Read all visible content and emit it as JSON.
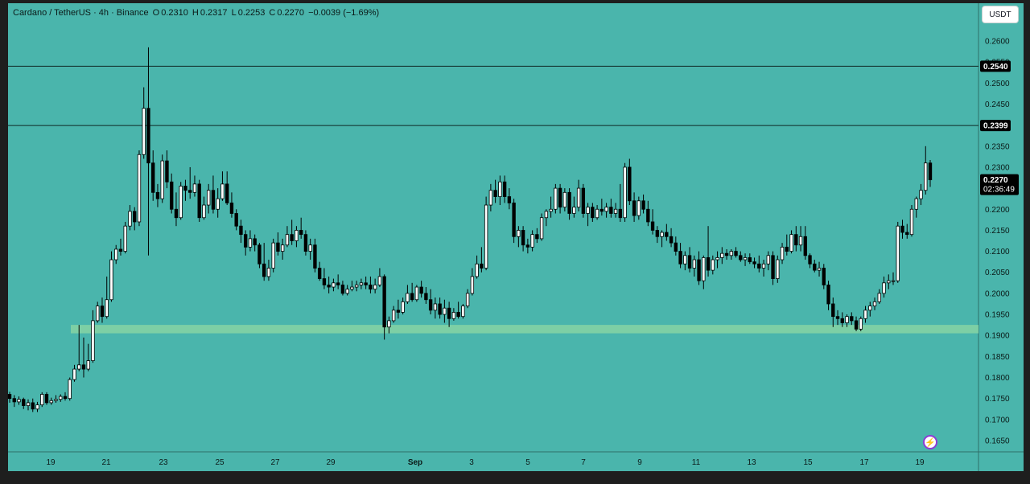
{
  "header": {
    "symbol": "Cardano / TetherUS · 4h · Binance",
    "open_label": "O",
    "open": "0.2310",
    "high_label": "H",
    "high": "0.2317",
    "low_label": "L",
    "low": "0.2253",
    "close_label": "C",
    "close": "0.2270",
    "change": "−0.0039 (−1.69%)"
  },
  "currency_button": "USDT",
  "colors": {
    "background": "#4ab5ac",
    "frame": "#1e1e1e",
    "up_candle": "#ffffff",
    "down_candle": "#000000",
    "wick": "#000000",
    "support_zone": "#86d3a3",
    "horizontal_line": "#0f2a26",
    "badge": "#000000",
    "bolt_accent": "#8c3bd6"
  },
  "icons": {
    "bolt": "lightning-bolt-icon"
  },
  "chart_data": {
    "type": "candlestick",
    "title": "Cardano / TetherUS · 4h · Binance",
    "ylim": [
      0.1625,
      0.2625
    ],
    "y_ticks": [
      "0.2600",
      "0.2550",
      "0.2500",
      "0.2450",
      "0.2400",
      "0.2350",
      "0.2300",
      "0.2250",
      "0.2200",
      "0.2150",
      "0.2100",
      "0.2050",
      "0.2000",
      "0.1950",
      "0.1900",
      "0.1850",
      "0.1800",
      "0.1750",
      "0.1700",
      "0.1650"
    ],
    "x_ticks": [
      "19",
      "21",
      "23",
      "25",
      "27",
      "29",
      "Sep",
      "3",
      "5",
      "7",
      "9",
      "11",
      "13",
      "15",
      "17",
      "19"
    ],
    "horizontal_lines": [
      0.254,
      0.2399
    ],
    "horizontal_line_labels": [
      "0.2540",
      "0.2399"
    ],
    "support_zone": [
      0.1905,
      0.1925
    ],
    "last_price": "0.2270",
    "countdown": "02:36:49",
    "candles": [
      [
        0.176,
        0.1766,
        0.174,
        0.175
      ],
      [
        0.175,
        0.1758,
        0.173,
        0.1742
      ],
      [
        0.1742,
        0.1755,
        0.1735,
        0.1748
      ],
      [
        0.1748,
        0.1752,
        0.1725,
        0.1733
      ],
      [
        0.1733,
        0.1748,
        0.1722,
        0.174
      ],
      [
        0.174,
        0.175,
        0.1718,
        0.1725
      ],
      [
        0.1725,
        0.1742,
        0.1718,
        0.1735
      ],
      [
        0.1735,
        0.1765,
        0.173,
        0.176
      ],
      [
        0.176,
        0.1765,
        0.1735,
        0.174
      ],
      [
        0.174,
        0.1752,
        0.1735,
        0.1745
      ],
      [
        0.1745,
        0.1758,
        0.174,
        0.1748
      ],
      [
        0.1748,
        0.176,
        0.1742,
        0.1755
      ],
      [
        0.1755,
        0.1765,
        0.1745,
        0.175
      ],
      [
        0.175,
        0.18,
        0.1745,
        0.1795
      ],
      [
        0.1795,
        0.183,
        0.179,
        0.182
      ],
      [
        0.182,
        0.1925,
        0.1815,
        0.183
      ],
      [
        0.183,
        0.1895,
        0.18,
        0.182
      ],
      [
        0.182,
        0.188,
        0.1815,
        0.184
      ],
      [
        0.184,
        0.196,
        0.1835,
        0.1935
      ],
      [
        0.1935,
        0.198,
        0.193,
        0.197
      ],
      [
        0.197,
        0.199,
        0.193,
        0.1945
      ],
      [
        0.1945,
        0.204,
        0.194,
        0.1985
      ],
      [
        0.1985,
        0.21,
        0.198,
        0.208
      ],
      [
        0.208,
        0.2115,
        0.207,
        0.2105
      ],
      [
        0.2105,
        0.213,
        0.209,
        0.21
      ],
      [
        0.21,
        0.217,
        0.2095,
        0.216
      ],
      [
        0.216,
        0.221,
        0.215,
        0.2195
      ],
      [
        0.2195,
        0.2205,
        0.215,
        0.217
      ],
      [
        0.217,
        0.234,
        0.216,
        0.233
      ],
      [
        0.233,
        0.249,
        0.232,
        0.244
      ],
      [
        0.244,
        0.2585,
        0.209,
        0.231
      ],
      [
        0.231,
        0.234,
        0.222,
        0.224
      ],
      [
        0.224,
        0.226,
        0.2205,
        0.2225
      ],
      [
        0.2225,
        0.233,
        0.2215,
        0.2315
      ],
      [
        0.2315,
        0.234,
        0.225,
        0.2265
      ],
      [
        0.2265,
        0.2285,
        0.219,
        0.22
      ],
      [
        0.22,
        0.224,
        0.216,
        0.218
      ],
      [
        0.218,
        0.2265,
        0.2175,
        0.2255
      ],
      [
        0.2255,
        0.227,
        0.222,
        0.2245
      ],
      [
        0.2245,
        0.23,
        0.2225,
        0.224
      ],
      [
        0.224,
        0.228,
        0.223,
        0.226
      ],
      [
        0.226,
        0.227,
        0.217,
        0.218
      ],
      [
        0.218,
        0.223,
        0.2175,
        0.221
      ],
      [
        0.221,
        0.226,
        0.219,
        0.2245
      ],
      [
        0.2245,
        0.228,
        0.219,
        0.22
      ],
      [
        0.22,
        0.225,
        0.218,
        0.2225
      ],
      [
        0.2225,
        0.229,
        0.222,
        0.226
      ],
      [
        0.226,
        0.229,
        0.221,
        0.2215
      ],
      [
        0.2215,
        0.224,
        0.218,
        0.219
      ],
      [
        0.219,
        0.22,
        0.215,
        0.216
      ],
      [
        0.216,
        0.2175,
        0.212,
        0.214
      ],
      [
        0.214,
        0.215,
        0.209,
        0.211
      ],
      [
        0.211,
        0.215,
        0.21,
        0.213
      ],
      [
        0.213,
        0.214,
        0.21,
        0.2115
      ],
      [
        0.2115,
        0.212,
        0.206,
        0.207
      ],
      [
        0.207,
        0.212,
        0.203,
        0.204
      ],
      [
        0.204,
        0.208,
        0.203,
        0.206
      ],
      [
        0.206,
        0.213,
        0.205,
        0.212
      ],
      [
        0.212,
        0.2145,
        0.209,
        0.21
      ],
      [
        0.21,
        0.213,
        0.208,
        0.2115
      ],
      [
        0.2115,
        0.216,
        0.211,
        0.214
      ],
      [
        0.214,
        0.2175,
        0.2115,
        0.2125
      ],
      [
        0.2125,
        0.216,
        0.211,
        0.215
      ],
      [
        0.215,
        0.218,
        0.213,
        0.214
      ],
      [
        0.214,
        0.215,
        0.209,
        0.21
      ],
      [
        0.21,
        0.213,
        0.208,
        0.2115
      ],
      [
        0.2115,
        0.213,
        0.205,
        0.206
      ],
      [
        0.206,
        0.2075,
        0.203,
        0.2035
      ],
      [
        0.2035,
        0.206,
        0.201,
        0.202
      ],
      [
        0.202,
        0.204,
        0.2,
        0.2015
      ],
      [
        0.2015,
        0.2035,
        0.2005,
        0.2025
      ],
      [
        0.2025,
        0.2045,
        0.201,
        0.202
      ],
      [
        0.202,
        0.203,
        0.1995,
        0.2
      ],
      [
        0.2,
        0.202,
        0.1995,
        0.201
      ],
      [
        0.201,
        0.203,
        0.2005,
        0.2015
      ],
      [
        0.2015,
        0.203,
        0.2005,
        0.202
      ],
      [
        0.202,
        0.2035,
        0.201,
        0.2025
      ],
      [
        0.2025,
        0.204,
        0.201,
        0.202
      ],
      [
        0.202,
        0.204,
        0.2,
        0.201
      ],
      [
        0.201,
        0.2035,
        0.2,
        0.202
      ],
      [
        0.202,
        0.206,
        0.2015,
        0.204
      ],
      [
        0.204,
        0.2045,
        0.189,
        0.192
      ],
      [
        0.192,
        0.1945,
        0.1905,
        0.1935
      ],
      [
        0.1935,
        0.197,
        0.193,
        0.196
      ],
      [
        0.196,
        0.1985,
        0.194,
        0.1955
      ],
      [
        0.1955,
        0.199,
        0.195,
        0.198
      ],
      [
        0.198,
        0.202,
        0.1975,
        0.2
      ],
      [
        0.2,
        0.2025,
        0.198,
        0.1985
      ],
      [
        0.1985,
        0.202,
        0.198,
        0.2015
      ],
      [
        0.2015,
        0.203,
        0.199,
        0.2
      ],
      [
        0.2,
        0.2015,
        0.1975,
        0.1985
      ],
      [
        0.1985,
        0.201,
        0.195,
        0.196
      ],
      [
        0.196,
        0.199,
        0.194,
        0.1975
      ],
      [
        0.1975,
        0.199,
        0.194,
        0.195
      ],
      [
        0.195,
        0.1985,
        0.193,
        0.1965
      ],
      [
        0.1965,
        0.198,
        0.192,
        0.194
      ],
      [
        0.194,
        0.1965,
        0.1935,
        0.1955
      ],
      [
        0.1955,
        0.198,
        0.194,
        0.1945
      ],
      [
        0.1945,
        0.1975,
        0.194,
        0.197
      ],
      [
        0.197,
        0.201,
        0.1965,
        0.2
      ],
      [
        0.2,
        0.206,
        0.1995,
        0.204
      ],
      [
        0.204,
        0.209,
        0.2035,
        0.207
      ],
      [
        0.207,
        0.211,
        0.205,
        0.206
      ],
      [
        0.206,
        0.223,
        0.2055,
        0.221
      ],
      [
        0.221,
        0.226,
        0.2195,
        0.2245
      ],
      [
        0.2245,
        0.227,
        0.2215,
        0.223
      ],
      [
        0.223,
        0.228,
        0.221,
        0.2265
      ],
      [
        0.2265,
        0.228,
        0.2215,
        0.223
      ],
      [
        0.223,
        0.225,
        0.22,
        0.2215
      ],
      [
        0.2215,
        0.2225,
        0.212,
        0.2135
      ],
      [
        0.2135,
        0.216,
        0.211,
        0.215
      ],
      [
        0.215,
        0.216,
        0.21,
        0.2115
      ],
      [
        0.2115,
        0.213,
        0.2095,
        0.211
      ],
      [
        0.211,
        0.215,
        0.21,
        0.214
      ],
      [
        0.214,
        0.2155,
        0.212,
        0.213
      ],
      [
        0.213,
        0.219,
        0.2125,
        0.218
      ],
      [
        0.218,
        0.22,
        0.216,
        0.2195
      ],
      [
        0.2195,
        0.223,
        0.218,
        0.22
      ],
      [
        0.22,
        0.226,
        0.219,
        0.225
      ],
      [
        0.225,
        0.226,
        0.219,
        0.2205
      ],
      [
        0.2205,
        0.225,
        0.2195,
        0.224
      ],
      [
        0.224,
        0.225,
        0.2175,
        0.219
      ],
      [
        0.219,
        0.223,
        0.218,
        0.2205
      ],
      [
        0.2205,
        0.227,
        0.2195,
        0.225
      ],
      [
        0.225,
        0.226,
        0.218,
        0.219
      ],
      [
        0.219,
        0.2215,
        0.216,
        0.2205
      ],
      [
        0.2205,
        0.2215,
        0.217,
        0.218
      ],
      [
        0.218,
        0.221,
        0.2175,
        0.22
      ],
      [
        0.22,
        0.2225,
        0.2185,
        0.2195
      ],
      [
        0.2195,
        0.2215,
        0.218,
        0.2205
      ],
      [
        0.2205,
        0.2225,
        0.218,
        0.219
      ],
      [
        0.219,
        0.2215,
        0.218,
        0.22
      ],
      [
        0.22,
        0.226,
        0.217,
        0.218
      ],
      [
        0.218,
        0.231,
        0.217,
        0.23
      ],
      [
        0.23,
        0.232,
        0.221,
        0.222
      ],
      [
        0.222,
        0.224,
        0.217,
        0.2185
      ],
      [
        0.2185,
        0.223,
        0.2175,
        0.222
      ],
      [
        0.222,
        0.2235,
        0.219,
        0.22
      ],
      [
        0.22,
        0.222,
        0.216,
        0.217
      ],
      [
        0.217,
        0.22,
        0.214,
        0.215
      ],
      [
        0.215,
        0.216,
        0.212,
        0.2135
      ],
      [
        0.2135,
        0.215,
        0.211,
        0.2145
      ],
      [
        0.2145,
        0.2165,
        0.2125,
        0.2135
      ],
      [
        0.2135,
        0.2155,
        0.211,
        0.212
      ],
      [
        0.212,
        0.2135,
        0.209,
        0.21
      ],
      [
        0.21,
        0.212,
        0.206,
        0.207
      ],
      [
        0.207,
        0.21,
        0.2055,
        0.209
      ],
      [
        0.209,
        0.211,
        0.205,
        0.206
      ],
      [
        0.206,
        0.209,
        0.204,
        0.208
      ],
      [
        0.208,
        0.21,
        0.202,
        0.203
      ],
      [
        0.203,
        0.209,
        0.201,
        0.2085
      ],
      [
        0.2085,
        0.216,
        0.204,
        0.2055
      ],
      [
        0.2055,
        0.209,
        0.2045,
        0.208
      ],
      [
        0.208,
        0.21,
        0.206,
        0.2085
      ],
      [
        0.2085,
        0.211,
        0.207,
        0.2095
      ],
      [
        0.2095,
        0.2105,
        0.208,
        0.209
      ],
      [
        0.209,
        0.2105,
        0.208,
        0.21
      ],
      [
        0.21,
        0.211,
        0.2085,
        0.209
      ],
      [
        0.209,
        0.21,
        0.2075,
        0.208
      ],
      [
        0.208,
        0.2095,
        0.2065,
        0.2085
      ],
      [
        0.2085,
        0.2095,
        0.207,
        0.2075
      ],
      [
        0.2075,
        0.2085,
        0.206,
        0.207
      ],
      [
        0.207,
        0.209,
        0.205,
        0.206
      ],
      [
        0.206,
        0.208,
        0.204,
        0.207
      ],
      [
        0.207,
        0.21,
        0.2055,
        0.209
      ],
      [
        0.209,
        0.21,
        0.202,
        0.2035
      ],
      [
        0.2035,
        0.209,
        0.2025,
        0.208
      ],
      [
        0.208,
        0.212,
        0.207,
        0.211
      ],
      [
        0.211,
        0.214,
        0.209,
        0.21
      ],
      [
        0.21,
        0.215,
        0.2095,
        0.214
      ],
      [
        0.214,
        0.216,
        0.21,
        0.2115
      ],
      [
        0.2115,
        0.216,
        0.21,
        0.2135
      ],
      [
        0.2135,
        0.216,
        0.208,
        0.209
      ],
      [
        0.209,
        0.2095,
        0.206,
        0.207
      ],
      [
        0.207,
        0.208,
        0.205,
        0.2055
      ],
      [
        0.2055,
        0.2075,
        0.204,
        0.206
      ],
      [
        0.206,
        0.207,
        0.201,
        0.202
      ],
      [
        0.202,
        0.203,
        0.196,
        0.1975
      ],
      [
        0.1975,
        0.199,
        0.192,
        0.1945
      ],
      [
        0.1945,
        0.196,
        0.1925,
        0.194
      ],
      [
        0.194,
        0.1955,
        0.192,
        0.193
      ],
      [
        0.193,
        0.195,
        0.192,
        0.1945
      ],
      [
        0.1945,
        0.1955,
        0.1925,
        0.1935
      ],
      [
        0.1935,
        0.1945,
        0.191,
        0.1915
      ],
      [
        0.1915,
        0.1945,
        0.191,
        0.194
      ],
      [
        0.194,
        0.197,
        0.193,
        0.196
      ],
      [
        0.196,
        0.198,
        0.1945,
        0.197
      ],
      [
        0.197,
        0.199,
        0.196,
        0.198
      ],
      [
        0.198,
        0.201,
        0.1975,
        0.2
      ],
      [
        0.2,
        0.204,
        0.199,
        0.2025
      ],
      [
        0.2025,
        0.2045,
        0.201,
        0.203
      ],
      [
        0.203,
        0.205,
        0.202,
        0.203
      ],
      [
        0.203,
        0.217,
        0.2025,
        0.216
      ],
      [
        0.216,
        0.2175,
        0.213,
        0.2145
      ],
      [
        0.2145,
        0.2165,
        0.213,
        0.214
      ],
      [
        0.214,
        0.221,
        0.2135,
        0.22
      ],
      [
        0.22,
        0.223,
        0.218,
        0.2225
      ],
      [
        0.2225,
        0.226,
        0.221,
        0.2245
      ],
      [
        0.2245,
        0.235,
        0.2235,
        0.231
      ],
      [
        0.231,
        0.2317,
        0.2253,
        0.227
      ]
    ]
  }
}
